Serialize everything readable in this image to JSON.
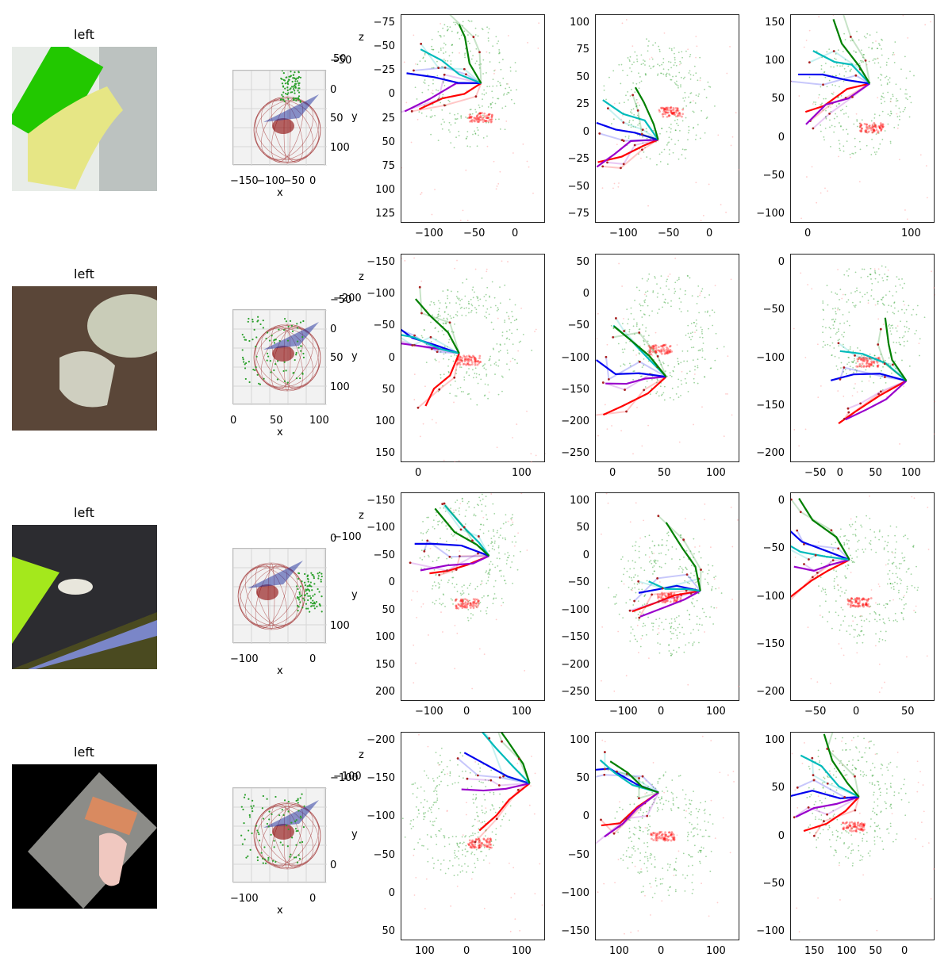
{
  "rows": [
    {
      "title": "left",
      "img": {
        "bg": "#e8ece8",
        "obj": "#22c800",
        "hand": "#e6e685"
      },
      "view3d": {
        "xticks": [
          "−150",
          "−100",
          "−50",
          "0"
        ],
        "yticks": [
          "−50",
          "0",
          "50",
          "100"
        ],
        "ztick": "50",
        "xlabel": "x",
        "ylabel": "y",
        "zlabel": "z"
      },
      "p1": {
        "xticks": [
          "−100",
          "−50",
          "0"
        ],
        "yticks": [
          "−75",
          "−50",
          "−25",
          "0",
          "25",
          "50",
          "75",
          "100",
          "125"
        ]
      },
      "p2": {
        "xticks": [
          "−100",
          "−50",
          "0"
        ],
        "yticks": [
          "100",
          "75",
          "50",
          "25",
          "0",
          "−25",
          "−50",
          "−75"
        ]
      },
      "p3": {
        "xticks": [
          "0",
          "100"
        ],
        "yticks": [
          "150",
          "100",
          "50",
          "0",
          "−50",
          "−100"
        ]
      }
    },
    {
      "title": "left",
      "img": {
        "bg": "#5a4638",
        "obj": "#c9ccb8",
        "hand": "#cfcfc0"
      },
      "view3d": {
        "xticks": [
          "0",
          "50",
          "100"
        ],
        "yticks": [
          "−50",
          "0",
          "50",
          "100"
        ],
        "ztick": "−200",
        "xlabel": "x",
        "ylabel": "y",
        "zlabel": "z"
      },
      "p1": {
        "xticks": [
          "0",
          "100"
        ],
        "yticks": [
          "−150",
          "−100",
          "−50",
          "0",
          "50",
          "100",
          "150"
        ]
      },
      "p2": {
        "xticks": [
          "0",
          "50",
          "100"
        ],
        "yticks": [
          "50",
          "0",
          "−50",
          "−100",
          "−150",
          "−200",
          "−250"
        ]
      },
      "p3": {
        "xticks": [
          "−50",
          "0",
          "50",
          "100"
        ],
        "yticks": [
          "0",
          "−50",
          "−100",
          "−150",
          "−200"
        ]
      }
    },
    {
      "title": "left",
      "img": {
        "bg": "#2c2c30",
        "obj": "#a4e81c",
        "hand": "#e8e6dc"
      },
      "view3d": {
        "xticks": [
          "−100",
          "0"
        ],
        "yticks": [
          "0",
          "100"
        ],
        "ztick": "−100",
        "xlabel": "x",
        "ylabel": "y",
        "zlabel": "z"
      },
      "p1": {
        "xticks": [
          "−100",
          "0",
          "100"
        ],
        "yticks": [
          "−150",
          "−100",
          "−50",
          "0",
          "50",
          "100",
          "150",
          "200"
        ]
      },
      "p2": {
        "xticks": [
          "−100",
          "0",
          "100"
        ],
        "yticks": [
          "100",
          "50",
          "0",
          "−50",
          "−100",
          "−150",
          "−200",
          "−250"
        ]
      },
      "p3": {
        "xticks": [
          "−50",
          "0",
          "50"
        ],
        "yticks": [
          "0",
          "−50",
          "−100",
          "−150",
          "−200"
        ]
      }
    },
    {
      "title": "left",
      "img": {
        "bg": "#000000",
        "obj": "#d98a60",
        "hand": "#f0c8c0"
      },
      "view3d": {
        "xticks": [
          "−100",
          "0"
        ],
        "yticks": [
          "−100",
          "0"
        ],
        "ztick": "−100",
        "xlabel": "x",
        "ylabel": "y",
        "zlabel": "z"
      },
      "p1": {
        "xticks": [
          "100",
          "0",
          "100"
        ],
        "yticks": [
          "−200",
          "−150",
          "−100",
          "−50",
          "0",
          "50"
        ]
      },
      "p2": {
        "xticks": [
          "100",
          "0",
          "100"
        ],
        "yticks": [
          "100",
          "50",
          "0",
          "−50",
          "−100",
          "−150"
        ]
      },
      "p3": {
        "xticks": [
          "150",
          "100",
          "50",
          "0"
        ],
        "yticks": [
          "100",
          "50",
          "0",
          "−50",
          "−100"
        ]
      }
    }
  ],
  "chart_data": {
    "type": "scatter",
    "description_series": [
      "object point cloud (green)",
      "hand point cloud (red)",
      "finger chains: red, magenta, blue, cyan, green"
    ],
    "colors": {
      "object": "#2ca02c",
      "contact": "#ff0000",
      "finger1": "#ff0000",
      "finger2": "#9900cc",
      "finger3": "#0000ee",
      "finger4": "#00bbbb",
      "finger5": "#008000"
    },
    "rows": 4,
    "views_per_row": 3
  }
}
